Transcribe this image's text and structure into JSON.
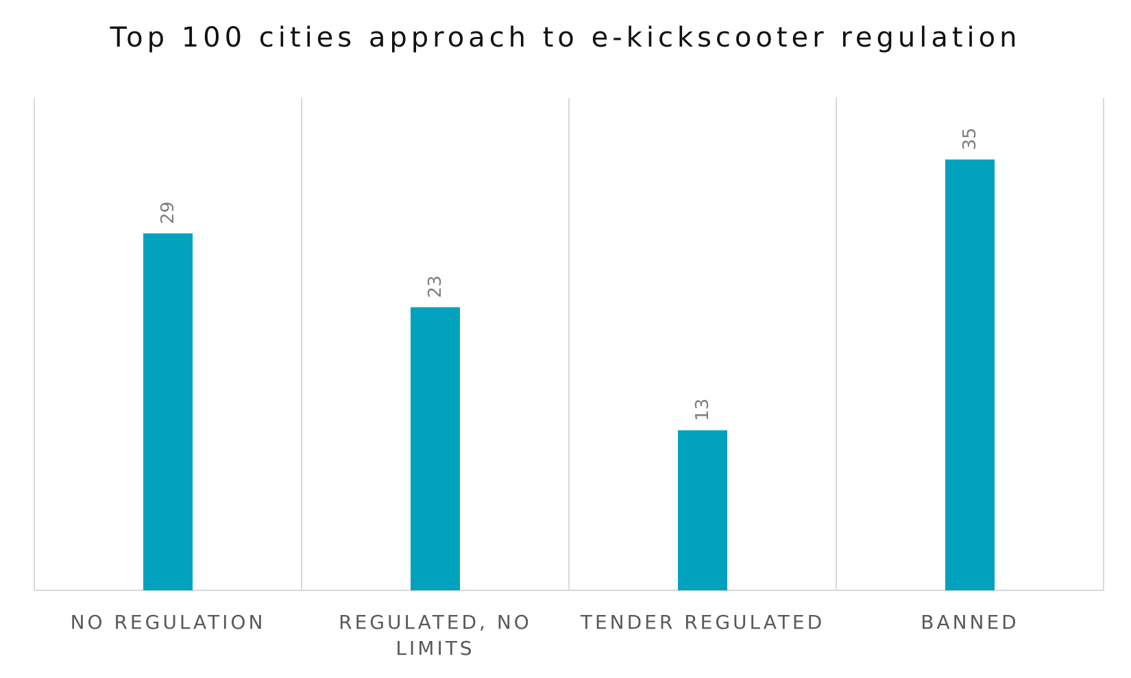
{
  "chart_data": {
    "type": "bar",
    "title": "Top 100 cities approach to e-kickscooter regulation",
    "categories": [
      "NO REGULATION",
      "REGULATED, NO LIMITS",
      "TENDER REGULATED",
      "BANNED"
    ],
    "category_lines": [
      [
        "NO REGULATION"
      ],
      [
        "REGULATED, NO",
        "LIMITS"
      ],
      [
        "TENDER REGULATED"
      ],
      [
        "BANNED"
      ]
    ],
    "values": [
      29,
      23,
      13,
      35
    ],
    "data_labels": [
      "29",
      "23",
      "13",
      "35"
    ],
    "xlabel": "",
    "ylabel": "",
    "ylim": [
      0,
      40
    ],
    "grid": "vertical category separators",
    "legend": "none",
    "bar_color": "#00A2BE",
    "grid_color": "#D9D9D9",
    "label_color": "#595959",
    "data_label_color": "#7F7F7F"
  }
}
